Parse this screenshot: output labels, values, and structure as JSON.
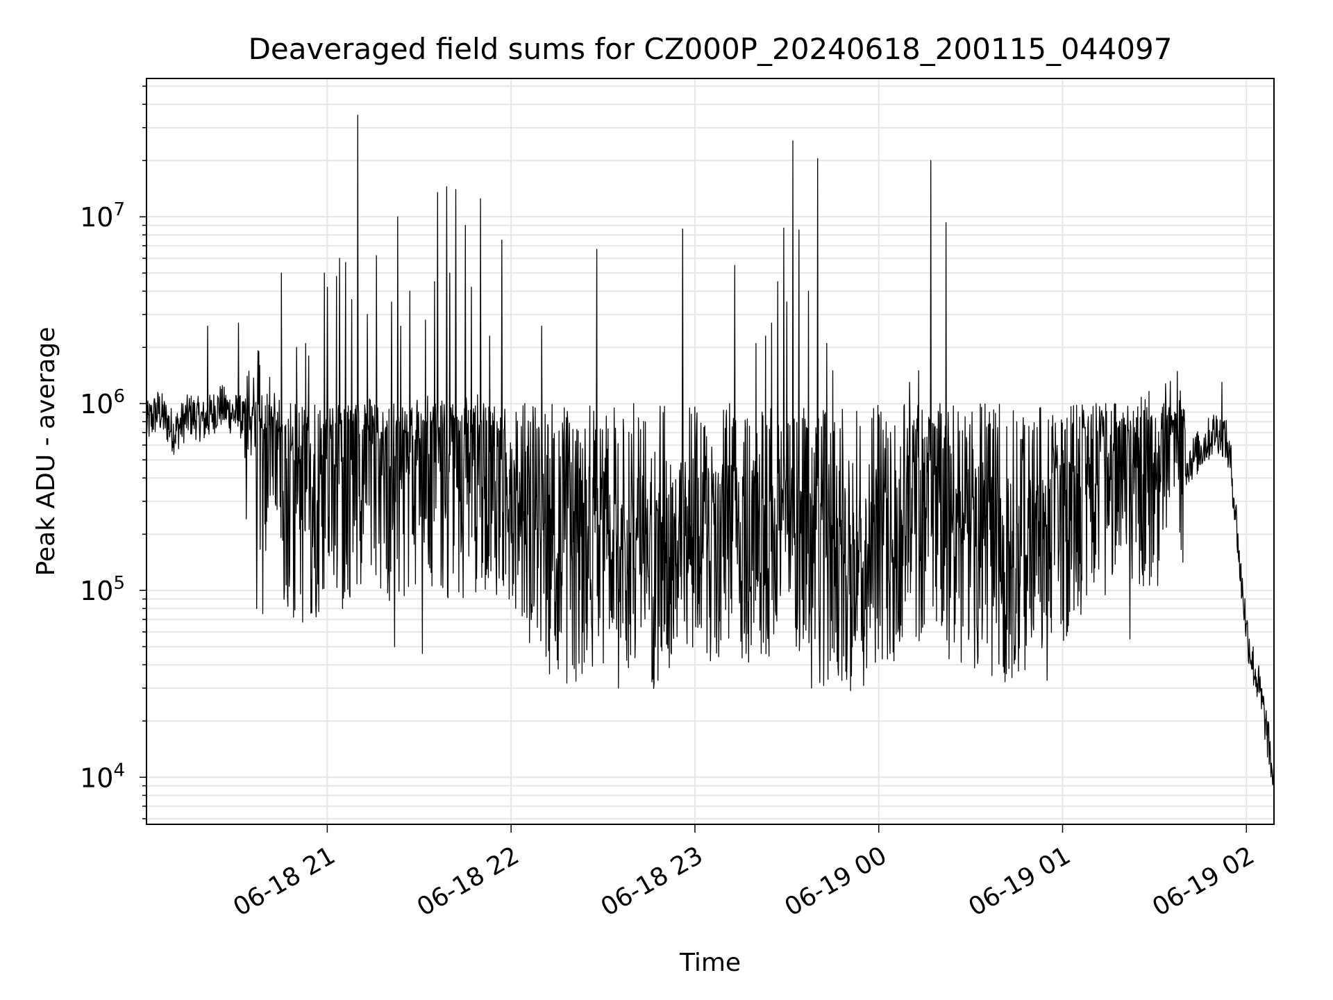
{
  "chart_data": {
    "type": "line",
    "title": "Deaveraged field sums for CZ000P_20240618_200115_044097",
    "xlabel": "Time",
    "ylabel": "Peak ADU - average",
    "x_range": [
      "2024-06-18 20:01",
      "2024-06-19 02:09"
    ],
    "y_scale": "log",
    "ylim": [
      5600,
      55000000
    ],
    "grid": true,
    "line_color": "#000000",
    "grid_color": "#e6e6e6",
    "x_ticks": [
      {
        "value": "2024-06-18 21:00",
        "label": "06-18 21"
      },
      {
        "value": "2024-06-18 22:00",
        "label": "06-18 22"
      },
      {
        "value": "2024-06-18 23:00",
        "label": "06-18 23"
      },
      {
        "value": "2024-06-19 00:00",
        "label": "06-19 00"
      },
      {
        "value": "2024-06-19 01:00",
        "label": "06-19 01"
      },
      {
        "value": "2024-06-19 02:00",
        "label": "06-19 02"
      }
    ],
    "y_ticks": [
      {
        "value": 10000,
        "base": "10",
        "exp": "4"
      },
      {
        "value": 100000,
        "base": "10",
        "exp": "5"
      },
      {
        "value": 1000000,
        "base": "10",
        "exp": "6"
      },
      {
        "value": 10000000,
        "base": "10",
        "exp": "7"
      }
    ],
    "series": [
      {
        "points": [
          [
            "2024-06-18 20:01",
            750000
          ],
          [
            "2024-06-18 20:05",
            900000
          ],
          [
            "2024-06-18 20:10",
            680000
          ],
          [
            "2024-06-18 20:15",
            850000
          ],
          [
            "2024-06-18 20:20",
            780000
          ],
          [
            "2024-06-18 20:25",
            950000
          ],
          [
            "2024-06-18 20:28",
            880000
          ],
          [
            "2024-06-18 20:32",
            820000
          ],
          [
            "2024-06-18 20:35",
            620000
          ],
          [
            "2024-06-18 20:38",
            480000
          ],
          [
            "2024-06-18 20:41",
            430000
          ],
          [
            "2024-06-18 20:44",
            300000
          ],
          [
            "2024-06-18 20:47",
            200000
          ],
          [
            "2024-06-18 20:50",
            150000
          ],
          [
            "2024-06-18 20:55",
            180000
          ],
          [
            "2024-06-18 21:00",
            300000
          ],
          [
            "2024-06-18 21:05",
            250000
          ],
          [
            "2024-06-18 21:10",
            320000
          ],
          [
            "2024-06-18 21:15",
            280000
          ],
          [
            "2024-06-18 21:20",
            250000
          ],
          [
            "2024-06-18 21:25",
            220000
          ],
          [
            "2024-06-18 21:30",
            270000
          ],
          [
            "2024-06-18 21:35",
            300000
          ],
          [
            "2024-06-18 21:40",
            260000
          ],
          [
            "2024-06-18 21:45",
            280000
          ],
          [
            "2024-06-18 21:50",
            300000
          ],
          [
            "2024-06-18 21:55",
            290000
          ],
          [
            "2024-06-18 22:00",
            240000
          ],
          [
            "2024-06-18 22:05",
            170000
          ],
          [
            "2024-06-18 22:10",
            120000
          ],
          [
            "2024-06-18 22:15",
            100000
          ],
          [
            "2024-06-18 22:20",
            90000
          ],
          [
            "2024-06-18 22:25",
            110000
          ],
          [
            "2024-06-18 22:30",
            120000
          ],
          [
            "2024-06-18 22:40",
            110000
          ],
          [
            "2024-06-18 22:45",
            90000
          ],
          [
            "2024-06-18 22:50",
            100000
          ],
          [
            "2024-06-18 22:55",
            110000
          ],
          [
            "2024-06-18 23:00",
            130000
          ],
          [
            "2024-06-18 23:05",
            110000
          ],
          [
            "2024-06-18 23:10",
            130000
          ],
          [
            "2024-06-18 23:15",
            120000
          ],
          [
            "2024-06-18 23:20",
            130000
          ],
          [
            "2024-06-18 23:25",
            120000
          ],
          [
            "2024-06-18 23:30",
            140000
          ],
          [
            "2024-06-18 23:35",
            120000
          ],
          [
            "2024-06-18 23:40",
            100000
          ],
          [
            "2024-06-18 23:45",
            90000
          ],
          [
            "2024-06-18 23:50",
            85000
          ],
          [
            "2024-06-18 23:55",
            80000
          ],
          [
            "2024-06-19 00:00",
            110000
          ],
          [
            "2024-06-19 00:05",
            130000
          ],
          [
            "2024-06-19 00:10",
            140000
          ],
          [
            "2024-06-19 00:15",
            180000
          ],
          [
            "2024-06-19 00:20",
            200000
          ],
          [
            "2024-06-19 00:25",
            130000
          ],
          [
            "2024-06-19 00:30",
            120000
          ],
          [
            "2024-06-19 00:35",
            110000
          ],
          [
            "2024-06-19 00:40",
            100000
          ],
          [
            "2024-06-19 00:45",
            100000
          ],
          [
            "2024-06-19 00:50",
            110000
          ],
          [
            "2024-06-19 00:55",
            120000
          ],
          [
            "2024-06-19 01:00",
            150000
          ],
          [
            "2024-06-19 01:05",
            220000
          ],
          [
            "2024-06-19 01:10",
            260000
          ],
          [
            "2024-06-19 01:15",
            280000
          ],
          [
            "2024-06-19 01:20",
            300000
          ],
          [
            "2024-06-19 01:25",
            270000
          ],
          [
            "2024-06-19 01:30",
            320000
          ],
          [
            "2024-06-19 01:35",
            380000
          ],
          [
            "2024-06-19 01:40",
            450000
          ],
          [
            "2024-06-19 01:45",
            550000
          ],
          [
            "2024-06-19 01:50",
            700000
          ],
          [
            "2024-06-19 01:53",
            650000
          ],
          [
            "2024-06-19 01:55",
            450000
          ],
          [
            "2024-06-19 01:56",
            300000
          ],
          [
            "2024-06-19 01:57",
            200000
          ],
          [
            "2024-06-19 01:58",
            120000
          ],
          [
            "2024-06-19 01:59",
            90000
          ],
          [
            "2024-06-19 02:00",
            60000
          ],
          [
            "2024-06-19 02:02",
            40000
          ],
          [
            "2024-06-19 02:04",
            30000
          ],
          [
            "2024-06-19 02:06",
            20000
          ],
          [
            "2024-06-19 02:08",
            12000
          ],
          [
            "2024-06-19 02:09",
            8500
          ]
        ],
        "spikes": [
          [
            "2024-06-18 20:21",
            2600000
          ],
          [
            "2024-06-18 20:31",
            2700000
          ],
          [
            "2024-06-18 20:38",
            1600000
          ],
          [
            "2024-06-18 20:45",
            5000000
          ],
          [
            "2024-06-18 20:50",
            2000000
          ],
          [
            "2024-06-18 20:53",
            2100000
          ],
          [
            "2024-06-18 20:54",
            1800000
          ],
          [
            "2024-06-18 20:59",
            5000000
          ],
          [
            "2024-06-18 21:00",
            4200000
          ],
          [
            "2024-06-18 21:03",
            4800000
          ],
          [
            "2024-06-18 21:04",
            6000000
          ],
          [
            "2024-06-18 21:06",
            5700000
          ],
          [
            "2024-06-18 21:08",
            3600000
          ],
          [
            "2024-06-18 21:10",
            2500000
          ],
          [
            "2024-06-18 21:13",
            3000000
          ],
          [
            "2024-06-18 21:16",
            6200000
          ],
          [
            "2024-06-18 21:21",
            3500000
          ],
          [
            "2024-06-18 21:24",
            2600000
          ],
          [
            "2024-06-18 21:27",
            4000000
          ],
          [
            "2024-06-18 21:32",
            2800000
          ],
          [
            "2024-06-18 21:35",
            4500000
          ],
          [
            "2024-06-18 21:40",
            5000000
          ],
          [
            "2024-06-18 21:45",
            6100000
          ],
          [
            "2024-06-18 21:47",
            4200000
          ],
          [
            "2024-06-18 21:50",
            3000000
          ],
          [
            "2024-06-18 21:53",
            2300000
          ],
          [
            "2024-06-18 21:57",
            7500000
          ],
          [
            "2024-06-18 22:10",
            2600000
          ],
          [
            "2024-06-18 22:40",
            1000000
          ],
          [
            "2024-06-18 22:56",
            8600000
          ],
          [
            "2024-06-18 23:13",
            5500000
          ],
          [
            "2024-06-18 23:20",
            2100000
          ],
          [
            "2024-06-18 23:23",
            2300000
          ],
          [
            "2024-06-18 23:25",
            2700000
          ],
          [
            "2024-06-18 23:27",
            4500000
          ],
          [
            "2024-06-18 23:29",
            8700000
          ],
          [
            "2024-06-18 23:30",
            3500000
          ],
          [
            "2024-06-18 23:34",
            8500000
          ],
          [
            "2024-06-18 23:37",
            4000000
          ],
          [
            "2024-06-18 23:40",
            1600000
          ],
          [
            "2024-06-18 23:43",
            2100000
          ],
          [
            "2024-06-18 23:45",
            1500000
          ],
          [
            "2024-06-19 00:10",
            1300000
          ],
          [
            "2024-06-19 00:13",
            1500000
          ],
          [
            "2024-06-19 00:20",
            1000000
          ],
          [
            "2024-06-19 00:45",
            800000
          ],
          [
            "2024-06-19 01:11",
            1000000
          ],
          [
            "2024-06-19 01:14",
            1000000
          ],
          [
            "2024-06-19 01:17",
            1000000
          ],
          [
            "2024-06-19 01:27",
            1050000
          ],
          [
            "2024-06-19 01:33",
            1000000
          ],
          [
            "2024-06-19 01:52",
            1300000
          ]
        ],
        "big_spikes": [
          [
            "2024-06-18 21:10",
            35000000
          ],
          [
            "2024-06-18 21:36",
            13500000
          ],
          [
            "2024-06-18 21:39",
            14500000
          ],
          [
            "2024-06-18 21:42",
            14000000
          ],
          [
            "2024-06-18 21:45",
            9000000
          ],
          [
            "2024-06-18 21:50",
            12500000
          ],
          [
            "2024-06-18 21:23",
            10000000
          ],
          [
            "2024-06-18 22:28",
            6700000
          ],
          [
            "2024-06-18 23:32",
            25500000
          ],
          [
            "2024-06-18 23:40",
            20500000
          ],
          [
            "2024-06-19 00:17",
            20000000
          ],
          [
            "2024-06-19 00:22",
            9300000
          ]
        ],
        "dips": [
          [
            "2024-06-18 20:37",
            80000
          ],
          [
            "2024-06-18 20:39",
            75000
          ],
          [
            "2024-06-18 20:46",
            100000
          ],
          [
            "2024-06-18 20:49",
            72000
          ],
          [
            "2024-06-18 21:05",
            80000
          ],
          [
            "2024-06-18 21:22",
            50000
          ],
          [
            "2024-06-18 21:31",
            46000
          ],
          [
            "2024-06-18 21:50",
            47000
          ],
          [
            "2024-06-18 22:10",
            48000
          ],
          [
            "2024-06-18 22:20",
            40000
          ],
          [
            "2024-06-18 22:35",
            30000
          ],
          [
            "2024-06-18 22:48",
            33000
          ],
          [
            "2024-06-18 23:05",
            42000
          ],
          [
            "2024-06-18 23:38",
            30000
          ],
          [
            "2024-06-18 23:48",
            33000
          ],
          [
            "2024-06-18 23:55",
            31000
          ],
          [
            "2024-06-19 00:05",
            42000
          ],
          [
            "2024-06-19 00:23",
            43000
          ],
          [
            "2024-06-19 00:37",
            35000
          ],
          [
            "2024-06-19 00:55",
            33000
          ],
          [
            "2024-06-19 01:22",
            55000
          ]
        ]
      }
    ]
  }
}
